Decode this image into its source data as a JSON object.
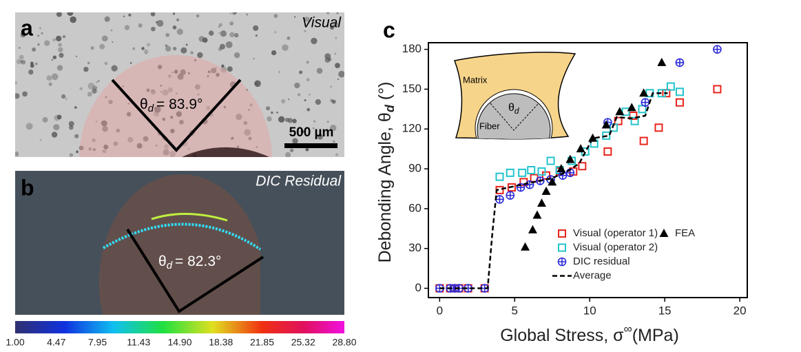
{
  "panel_a": {
    "label": "a",
    "caption": "Visual",
    "angle_symbol": "θ",
    "angle_subscript": "d",
    "angle_value": "= 83.9°",
    "scale_bar": "500 µm"
  },
  "panel_b": {
    "label": "b",
    "caption": "DIC Residual",
    "angle_symbol": "θ",
    "angle_subscript": "d",
    "angle_value": "= 82.3°",
    "colorbar_labels": [
      "1.00",
      "4.47",
      "7.95",
      "11.43",
      "14.90",
      "18.38",
      "21.85",
      "25.32",
      "28.80"
    ]
  },
  "chart_data": {
    "type": "scatter",
    "panel_label": "c",
    "x_label": {
      "text": "Global Stress, σ",
      "sup": "∞",
      "unit": "(MPa)"
    },
    "y_label": {
      "text": "Debonding Angle, θ",
      "sub": "d",
      "unit": " (°)"
    },
    "inset": {
      "matrix": "Matrix",
      "fiber": "Fiber",
      "angle_symbol": "θ",
      "angle_subscript": "d"
    },
    "xlim": [
      -0.75,
      20.5
    ],
    "ylim": [
      -7,
      185
    ],
    "xticks": [
      0,
      5,
      10,
      15,
      20
    ],
    "yticks": [
      0,
      30,
      60,
      90,
      120,
      150,
      180
    ],
    "series": [
      {
        "name": "Visual (operator 1)",
        "color": "#e8241c",
        "marker": "square",
        "x": [
          0,
          0.7,
          1.0,
          1.3,
          1.9,
          3.0,
          4.0,
          4.8,
          5.6,
          6.3,
          7.1,
          8.0,
          8.9,
          9.5,
          11.2,
          11.9,
          12.9,
          13.6,
          14.6,
          15.1,
          16.0,
          18.5
        ],
        "values": [
          0,
          0,
          0,
          0,
          0,
          0,
          74,
          76,
          80,
          83,
          85,
          88,
          88,
          92,
          103,
          126,
          130,
          111,
          121,
          147,
          140,
          150
        ]
      },
      {
        "name": "Visual (operator 2)",
        "color": "#22c4cc",
        "marker": "square",
        "x": [
          4.0,
          4.7,
          5.5,
          6.1,
          6.8,
          7.4,
          8.0,
          8.8,
          9.7,
          10.3,
          11.1,
          11.6,
          12.4,
          13.0,
          13.5,
          14.0,
          14.8,
          15.4,
          16.0
        ],
        "values": [
          84,
          87,
          87,
          89,
          88,
          96,
          89,
          96,
          103,
          109,
          115,
          121,
          133,
          126,
          135,
          147,
          147,
          152,
          148
        ]
      },
      {
        "name": "DIC residual",
        "color": "#2a2ad8",
        "marker": "crosscircle",
        "x": [
          0,
          0.7,
          1.0,
          1.3,
          1.9,
          3.0,
          4.0,
          4.7,
          5.4,
          6.0,
          6.7,
          7.4,
          8.2,
          8.7,
          11.2,
          13.7,
          16.0,
          18.5
        ],
        "values": [
          0,
          0,
          0,
          0,
          0,
          0,
          67,
          70,
          76,
          78,
          81,
          82,
          85,
          87,
          125,
          140,
          170,
          180
        ]
      },
      {
        "name": "FEA",
        "color": "#000000",
        "marker": "triangle",
        "x": [
          5.7,
          6.2,
          6.5,
          6.8,
          7.1,
          7.5,
          8.1,
          8.7,
          9.4,
          10.2,
          11.1,
          12.0,
          12.8,
          13.6,
          14.8
        ],
        "values": [
          31,
          44,
          55,
          64,
          73,
          80,
          90,
          97,
          105,
          113,
          123,
          133,
          136,
          147,
          170
        ]
      },
      {
        "name": "Average",
        "color": "#000000",
        "marker": "dashed",
        "x": [
          0,
          3.2,
          3.5,
          3.8,
          4.2,
          7.5,
          8.5,
          9.3,
          10.2,
          11.3,
          11.8,
          12.8,
          13.7,
          14.2,
          15.2
        ],
        "values": [
          0,
          0,
          40,
          74,
          75,
          83,
          88,
          94,
          113,
          115,
          129,
          128,
          130,
          147,
          147
        ]
      }
    ]
  }
}
